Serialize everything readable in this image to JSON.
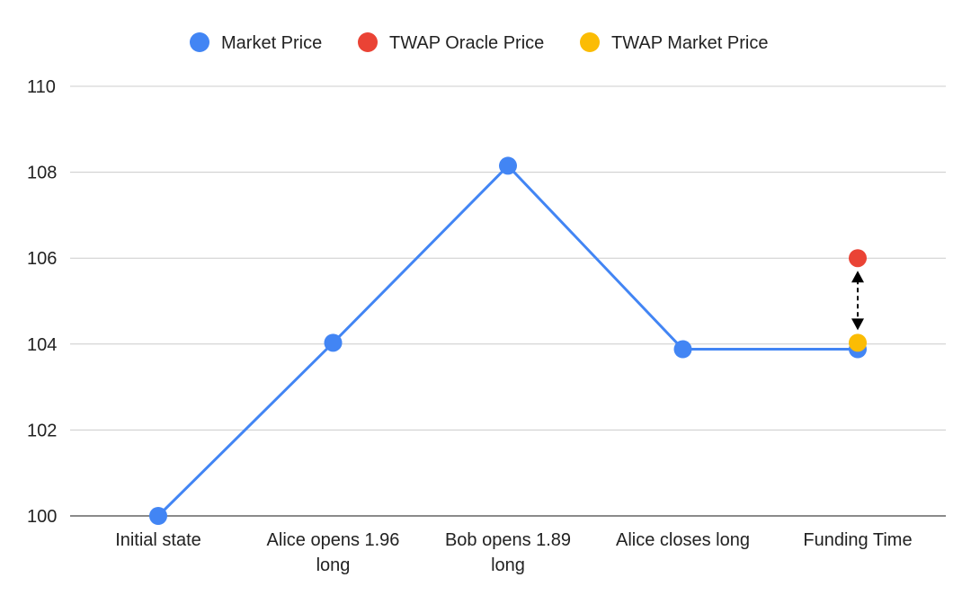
{
  "chart_data": {
    "type": "line",
    "categories": [
      [
        "Initial state"
      ],
      [
        "Alice opens 1.96",
        "long"
      ],
      [
        "Bob opens 1.89",
        "long"
      ],
      [
        "Alice closes long"
      ],
      [
        "Funding Time"
      ]
    ],
    "series": [
      {
        "name": "Market Price",
        "color": "#4285f4",
        "values": [
          100,
          104.03,
          108.15,
          103.88,
          103.88
        ],
        "connected": true
      },
      {
        "name": "TWAP Oracle Price",
        "color": "#ea4335",
        "values": [
          null,
          null,
          null,
          null,
          106.0
        ],
        "connected": false
      },
      {
        "name": "TWAP Market Price",
        "color": "#fbbc04",
        "values": [
          null,
          null,
          null,
          null,
          104.03
        ],
        "connected": false
      }
    ],
    "ylim": [
      100,
      110
    ],
    "yticks": [
      100,
      102,
      104,
      106,
      108,
      110
    ],
    "grid": true,
    "legend": "top-center",
    "annotation": {
      "type": "double-arrow",
      "category_index": 4,
      "from": 104.03,
      "to": 106.0,
      "style": "dashed",
      "color": "#000000"
    }
  }
}
